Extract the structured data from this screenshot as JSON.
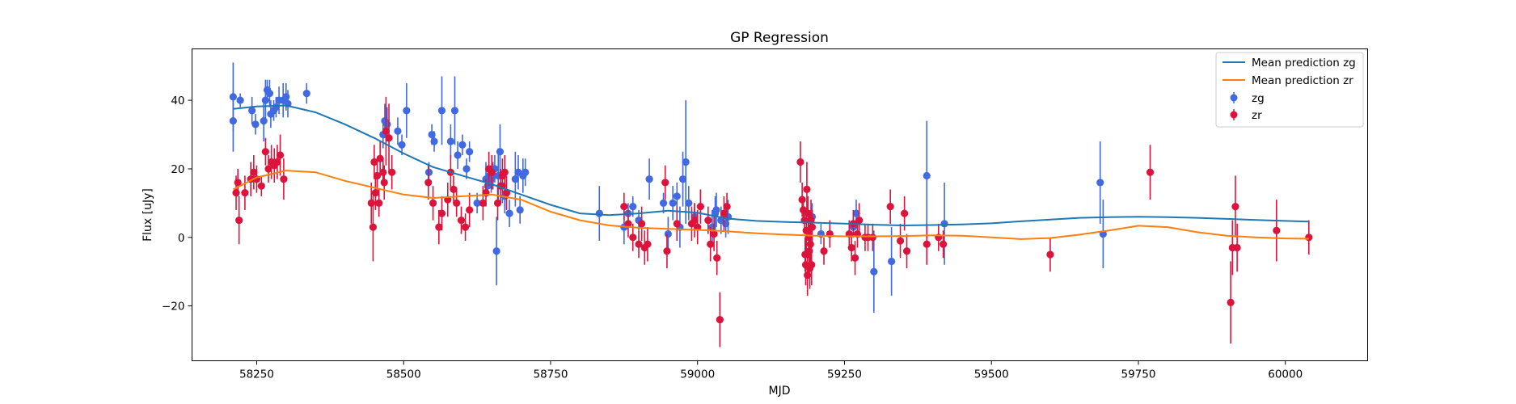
{
  "chart_data": {
    "type": "scatter",
    "title": "GP Regression",
    "xlabel": "MJD",
    "ylabel": "Flux [uJy]",
    "xlim": [
      58140,
      60140
    ],
    "ylim": [
      -36,
      55
    ],
    "xticks": [
      58250,
      58500,
      58750,
      59000,
      59250,
      59500,
      59750,
      60000
    ],
    "yticks": [
      -20,
      0,
      20,
      40
    ],
    "grid": false,
    "legend_position": "top-right",
    "colors": {
      "mean_zg": "#1f77b4",
      "mean_zr": "#ff7f0e",
      "zg": "#4169e1",
      "zr": "#dc143c"
    },
    "lines": [
      {
        "name": "Mean prediction zg",
        "x": [
          58210,
          58250,
          58300,
          58350,
          58400,
          58450,
          58500,
          58550,
          58600,
          58650,
          58700,
          58750,
          58800,
          58850,
          58900,
          58950,
          59000,
          59050,
          59100,
          59150,
          59200,
          59250,
          59300,
          59350,
          59400,
          59450,
          59500,
          59550,
          59600,
          59650,
          59700,
          59750,
          59800,
          59850,
          59900,
          59950,
          60000,
          60040
        ],
        "y": [
          37.5,
          38.2,
          38.5,
          36.5,
          33.0,
          29.0,
          24.5,
          20.5,
          18.0,
          15.5,
          12.5,
          9.5,
          7.0,
          6.5,
          7.0,
          7.8,
          7.2,
          5.5,
          4.8,
          4.5,
          4.3,
          4.0,
          3.7,
          3.5,
          3.6,
          3.8,
          4.1,
          4.7,
          5.2,
          5.7,
          5.9,
          6.0,
          5.9,
          5.7,
          5.4,
          5.1,
          4.8,
          4.6
        ]
      },
      {
        "name": "Mean prediction zr",
        "x": [
          58210,
          58250,
          58300,
          58350,
          58400,
          58450,
          58500,
          58550,
          58600,
          58650,
          58700,
          58750,
          58800,
          58850,
          58900,
          58950,
          59000,
          59050,
          59100,
          59150,
          59200,
          59250,
          59300,
          59350,
          59400,
          59450,
          59500,
          59550,
          59600,
          59650,
          59700,
          59750,
          59800,
          59850,
          59900,
          59950,
          60000,
          60040
        ],
        "y": [
          14.0,
          17.5,
          19.5,
          19.0,
          16.5,
          14.5,
          12.5,
          11.5,
          12.0,
          12.5,
          11.0,
          7.5,
          5.0,
          3.5,
          2.8,
          2.5,
          2.2,
          1.8,
          1.2,
          0.8,
          0.5,
          0.3,
          0.3,
          0.4,
          0.6,
          0.5,
          0.0,
          -0.5,
          -0.2,
          0.8,
          2.0,
          3.4,
          3.0,
          1.5,
          0.5,
          0.0,
          -0.3,
          -0.4
        ]
      }
    ],
    "series": [
      {
        "name": "zg",
        "points": [
          [
            58210,
            41,
            10
          ],
          [
            58210,
            34,
            9
          ],
          [
            58222,
            40,
            2
          ],
          [
            58242,
            37,
            4
          ],
          [
            58248,
            33,
            3
          ],
          [
            58262,
            34,
            6
          ],
          [
            58265,
            40,
            6
          ],
          [
            58268,
            43,
            3
          ],
          [
            58272,
            42,
            4
          ],
          [
            58274,
            36,
            4
          ],
          [
            58279,
            37,
            3
          ],
          [
            58283,
            38,
            3
          ],
          [
            58288,
            40,
            4
          ],
          [
            58295,
            40,
            5
          ],
          [
            58300,
            41,
            4
          ],
          [
            58303,
            39,
            4
          ],
          [
            58335,
            42,
            3
          ],
          [
            58465,
            30,
            4
          ],
          [
            58468,
            34,
            5
          ],
          [
            58472,
            33,
            5
          ],
          [
            58490,
            31,
            4
          ],
          [
            58497,
            27,
            3
          ],
          [
            58505,
            37,
            8
          ],
          [
            58543,
            19,
            3
          ],
          [
            58548,
            30,
            3
          ],
          [
            58552,
            28,
            3
          ],
          [
            58565,
            37,
            10
          ],
          [
            58580,
            28,
            5
          ],
          [
            58587,
            37,
            10
          ],
          [
            58592,
            24,
            4
          ],
          [
            58600,
            27,
            3
          ],
          [
            58607,
            20,
            3
          ],
          [
            58612,
            25,
            3
          ],
          [
            58625,
            10,
            3
          ],
          [
            58640,
            17,
            5
          ],
          [
            58643,
            15,
            3
          ],
          [
            58646,
            18,
            3
          ],
          [
            58649,
            17,
            4
          ],
          [
            58652,
            18,
            4
          ],
          [
            58655,
            20,
            4
          ],
          [
            58658,
            -4,
            10
          ],
          [
            58661,
            18,
            8
          ],
          [
            58664,
            25,
            8
          ],
          [
            58668,
            15,
            5
          ],
          [
            58672,
            12,
            5
          ],
          [
            58680,
            7,
            4
          ],
          [
            58690,
            17,
            8
          ],
          [
            58695,
            19,
            5
          ],
          [
            58698,
            8,
            4
          ],
          [
            58703,
            18,
            5
          ],
          [
            58707,
            19,
            4
          ],
          [
            58833,
            7,
            8
          ],
          [
            58875,
            3,
            5
          ],
          [
            58882,
            7,
            3
          ],
          [
            58890,
            9,
            3
          ],
          [
            58900,
            5,
            3
          ],
          [
            58918,
            17,
            6
          ],
          [
            58942,
            10,
            3
          ],
          [
            58950,
            1,
            5
          ],
          [
            58958,
            10,
            5
          ],
          [
            58965,
            12,
            4
          ],
          [
            58970,
            3,
            6
          ],
          [
            58975,
            17,
            8
          ],
          [
            58980,
            22,
            18
          ],
          [
            58985,
            10,
            5
          ],
          [
            58995,
            6,
            4
          ],
          [
            59025,
            3,
            5
          ],
          [
            59030,
            7,
            5
          ],
          [
            59040,
            5,
            4
          ],
          [
            59048,
            4,
            4
          ],
          [
            59052,
            6,
            5
          ],
          [
            59032,
            8,
            5
          ],
          [
            59195,
            6,
            4
          ],
          [
            59210,
            1,
            3
          ],
          [
            59265,
            3,
            3
          ],
          [
            59270,
            7,
            4
          ],
          [
            59300,
            -10,
            12
          ],
          [
            59330,
            -7,
            10
          ],
          [
            59390,
            18,
            16
          ],
          [
            59420,
            4,
            12
          ],
          [
            59685,
            16,
            12
          ],
          [
            59690,
            1,
            10
          ]
        ]
      },
      {
        "name": "zr",
        "points": [
          [
            58215,
            13,
            5
          ],
          [
            58218,
            16,
            4
          ],
          [
            58220,
            5,
            7
          ],
          [
            58230,
            13,
            5
          ],
          [
            58240,
            17,
            5
          ],
          [
            58245,
            19,
            5
          ],
          [
            58250,
            17,
            4
          ],
          [
            58258,
            15,
            3
          ],
          [
            58265,
            25,
            4
          ],
          [
            58270,
            20,
            4
          ],
          [
            58275,
            22,
            5
          ],
          [
            58280,
            21,
            5
          ],
          [
            58285,
            22,
            5
          ],
          [
            58290,
            24,
            6
          ],
          [
            58296,
            17,
            6
          ],
          [
            58445,
            10,
            6
          ],
          [
            58448,
            3,
            10
          ],
          [
            58450,
            22,
            5
          ],
          [
            58452,
            13,
            5
          ],
          [
            58455,
            18,
            5
          ],
          [
            58458,
            10,
            4
          ],
          [
            58460,
            23,
            5
          ],
          [
            58465,
            19,
            4
          ],
          [
            58467,
            16,
            5
          ],
          [
            58470,
            31,
            10
          ],
          [
            58475,
            29,
            10
          ],
          [
            58480,
            19,
            5
          ],
          [
            58542,
            16,
            5
          ],
          [
            58550,
            10,
            5
          ],
          [
            58560,
            3,
            5
          ],
          [
            58565,
            7,
            5
          ],
          [
            58575,
            11,
            5
          ],
          [
            58580,
            19,
            5
          ],
          [
            58585,
            14,
            4
          ],
          [
            58590,
            10,
            4
          ],
          [
            58598,
            5,
            4
          ],
          [
            58605,
            3,
            4
          ],
          [
            58612,
            8,
            5
          ],
          [
            58635,
            10,
            5
          ],
          [
            58640,
            13,
            4
          ],
          [
            58645,
            20,
            5
          ],
          [
            58650,
            19,
            5
          ],
          [
            58660,
            10,
            5
          ],
          [
            58665,
            15,
            5
          ],
          [
            58668,
            18,
            5
          ],
          [
            58672,
            19,
            5
          ],
          [
            58675,
            13,
            5
          ],
          [
            58875,
            9,
            4
          ],
          [
            58882,
            4,
            4
          ],
          [
            58890,
            0,
            4
          ],
          [
            58900,
            -2,
            4
          ],
          [
            58905,
            4,
            5
          ],
          [
            58910,
            -3,
            5
          ],
          [
            58915,
            -2,
            5
          ],
          [
            58945,
            16,
            5
          ],
          [
            58948,
            -4,
            5
          ],
          [
            58965,
            4,
            5
          ],
          [
            58990,
            4,
            5
          ],
          [
            58995,
            5,
            5
          ],
          [
            59000,
            3,
            5
          ],
          [
            59005,
            9,
            5
          ],
          [
            59018,
            5,
            4
          ],
          [
            59022,
            -2,
            5
          ],
          [
            59028,
            1,
            5
          ],
          [
            59033,
            -6,
            5
          ],
          [
            59038,
            -24,
            8
          ],
          [
            59045,
            7,
            5
          ],
          [
            59050,
            9,
            4
          ],
          [
            59175,
            22,
            6
          ],
          [
            59178,
            11,
            5
          ],
          [
            59180,
            8,
            4
          ],
          [
            59182,
            5,
            4
          ],
          [
            59183,
            -5,
            5
          ],
          [
            59184,
            -8,
            6
          ],
          [
            59185,
            2,
            6
          ],
          [
            59186,
            14,
            8
          ],
          [
            59187,
            -11,
            6
          ],
          [
            59188,
            7,
            5
          ],
          [
            59189,
            0,
            6
          ],
          [
            59190,
            -4,
            6
          ],
          [
            59191,
            -9,
            6
          ],
          [
            59192,
            -2,
            6
          ],
          [
            59193,
            5,
            6
          ],
          [
            59194,
            -8,
            6
          ],
          [
            59195,
            3,
            5
          ],
          [
            59215,
            -4,
            4
          ],
          [
            59225,
            1,
            4
          ],
          [
            59258,
            1,
            4
          ],
          [
            59262,
            -3,
            4
          ],
          [
            59265,
            4,
            4
          ],
          [
            59268,
            -6,
            5
          ],
          [
            59272,
            1,
            4
          ],
          [
            59275,
            5,
            5
          ],
          [
            59285,
            0,
            4
          ],
          [
            59290,
            0,
            4
          ],
          [
            59298,
            0,
            4
          ],
          [
            59328,
            9,
            5
          ],
          [
            59345,
            -1,
            5
          ],
          [
            59352,
            7,
            5
          ],
          [
            59356,
            -4,
            5
          ],
          [
            59390,
            -2,
            6
          ],
          [
            59410,
            0,
            4
          ],
          [
            59418,
            -2,
            4
          ],
          [
            59600,
            -5,
            5
          ],
          [
            59770,
            19,
            8
          ],
          [
            59907,
            -19,
            12
          ],
          [
            59910,
            -3,
            8
          ],
          [
            59915,
            9,
            9
          ],
          [
            59918,
            -3,
            7
          ],
          [
            59985,
            2,
            9
          ],
          [
            60040,
            0,
            5
          ]
        ]
      }
    ]
  }
}
